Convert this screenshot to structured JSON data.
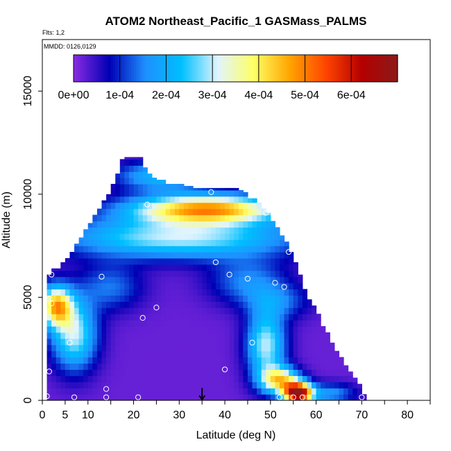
{
  "chart_data": {
    "type": "heatmap",
    "title": "ATOM2 Northeast_Pacific_1 GASMass_PALMS",
    "flights_label": "Flts: 1,2",
    "dates_label": "MMDD: 0126,0129",
    "xlabel": "Latitude (deg N)",
    "ylabel": "Altitude (m)",
    "xlim": [
      0,
      85
    ],
    "ylim": [
      0,
      17500
    ],
    "x_ticks": [
      0,
      5,
      10,
      20,
      30,
      40,
      50,
      60,
      70,
      80
    ],
    "x_minor_ticks": [
      0,
      5,
      10,
      15,
      20,
      25,
      30,
      35,
      40,
      45,
      50,
      55,
      60,
      65,
      70,
      75,
      80,
      85
    ],
    "y_ticks": [
      0,
      5000,
      10000,
      15000
    ],
    "colorbar": {
      "min": 0,
      "max": 0.0007,
      "ticks": [
        0,
        0.0001,
        0.0002,
        0.0003,
        0.0004,
        0.0005,
        0.0006
      ],
      "tick_labels": [
        "0e+00",
        "1e-04",
        "2e-04",
        "3e-04",
        "4e-04",
        "5e-04",
        "6e-04"
      ],
      "colors": [
        "#8a2be2",
        "#0000b4",
        "#1e90ff",
        "#00bfff",
        "#e0f4ff",
        "#ffff66",
        "#ffa500",
        "#ff4500",
        "#b40000",
        "#8b1a1a"
      ]
    },
    "envelope": {
      "lat": [
        0,
        1,
        2,
        3,
        4,
        5,
        6,
        7,
        8,
        9,
        10,
        11,
        12,
        13,
        14,
        15,
        16,
        17,
        18,
        19,
        20,
        21,
        22,
        23,
        24,
        25,
        26,
        27,
        28,
        29,
        30,
        31,
        32,
        33,
        34,
        35,
        36,
        37,
        38,
        39,
        40,
        41,
        42,
        43,
        44,
        45,
        46,
        47,
        48,
        49,
        50,
        51,
        52,
        53,
        54,
        55,
        56,
        57,
        58,
        59,
        60,
        61,
        62,
        63,
        64,
        65,
        66,
        67,
        68,
        69,
        70,
        71
      ],
      "alt_top": [
        0,
        0,
        6100,
        6400,
        6400,
        6700,
        6900,
        7200,
        7600,
        7900,
        8300,
        8600,
        9000,
        9300,
        9700,
        10000,
        10500,
        11000,
        11700,
        11800,
        11800,
        11800,
        11300,
        11000,
        10800,
        10700,
        10700,
        10500,
        10500,
        10500,
        10500,
        10400,
        10400,
        10300,
        10300,
        10300,
        10300,
        10300,
        10300,
        10300,
        10300,
        10300,
        10300,
        10200,
        10100,
        9800,
        9800,
        9600,
        9300,
        9100,
        8700,
        8400,
        8000,
        7700,
        7200,
        6700,
        6100,
        5400,
        4900,
        4600,
        4200,
        3600,
        3300,
        2800,
        2400,
        2100,
        1700,
        1400,
        1100,
        800,
        300,
        0
      ]
    },
    "values_by_altitude_band": [
      {
        "alt_range": [
          0,
          500
        ],
        "value_by_lat": "low (~0) from 0-45N; rising to ~3e-04 at 50N; peaks ~6.5e-04 at 54-58N; declining to ~1e-04 by 68N"
      },
      {
        "alt_range": [
          500,
          1500
        ],
        "value_by_lat": "~0 from 0-40N; ~2e-04 near 48N; ~5e-04 near 55N"
      },
      {
        "alt_range": [
          1500,
          4500
        ],
        "value_by_lat": "~2.5e-04 to 4e-04 at 2-8N; ~0 from 15-45N; ~2e-04 to 3e-04 near 50N"
      },
      {
        "alt_range": [
          4500,
          6500
        ],
        "value_by_lat": "~4e-04 at 2-5N; ~1e-04 from 10-40N; ~1.5e-04 near 55N"
      },
      {
        "alt_range": [
          6500,
          8500
        ],
        "value_by_lat": "~1.5e-04 to 3.5e-04 across 5-55N"
      },
      {
        "alt_range": [
          8500,
          10000
        ],
        "value_by_lat": "~4.5e-04 from 24-50N; ~1e-04 near 15N"
      },
      {
        "alt_range": [
          10000,
          12500
        ],
        "value_by_lat": "~1e-04 to 2.5e-04 from 17-40N"
      }
    ],
    "sample_points": [
      {
        "lat": 1,
        "alt": 200
      },
      {
        "lat": 1.5,
        "alt": 1400
      },
      {
        "lat": 2,
        "alt": 4700
      },
      {
        "lat": 2,
        "alt": 6100
      },
      {
        "lat": 6,
        "alt": 2800
      },
      {
        "lat": 7,
        "alt": 150
      },
      {
        "lat": 13,
        "alt": 6000
      },
      {
        "lat": 14,
        "alt": 550
      },
      {
        "lat": 14,
        "alt": 150
      },
      {
        "lat": 21,
        "alt": 150
      },
      {
        "lat": 22,
        "alt": 4000
      },
      {
        "lat": 23,
        "alt": 9500
      },
      {
        "lat": 25,
        "alt": 4500
      },
      {
        "lat": 37,
        "alt": 10100
      },
      {
        "lat": 38,
        "alt": 6700
      },
      {
        "lat": 40,
        "alt": 1500
      },
      {
        "lat": 41,
        "alt": 6100
      },
      {
        "lat": 44,
        "alt": 10400
      },
      {
        "lat": 45,
        "alt": 5900
      },
      {
        "lat": 46,
        "alt": 2800
      },
      {
        "lat": 49,
        "alt": 9100
      },
      {
        "lat": 51,
        "alt": 5700
      },
      {
        "lat": 52,
        "alt": 150
      },
      {
        "lat": 53,
        "alt": 5500
      },
      {
        "lat": 54,
        "alt": 7200
      },
      {
        "lat": 55,
        "alt": 150
      },
      {
        "lat": 57,
        "alt": 150
      },
      {
        "lat": 70,
        "alt": 150
      }
    ],
    "marker": {
      "type": "arrow",
      "lat": 35,
      "alt": 600
    }
  }
}
